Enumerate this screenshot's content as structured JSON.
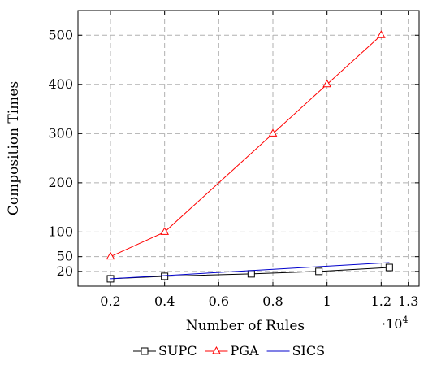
{
  "chart_data": {
    "type": "line",
    "xlabel": "Number of Rules",
    "ylabel": "Composition Times",
    "x_multiplier_label": "·10",
    "x_multiplier_exponent": "4",
    "xlim": [
      0.08,
      1.34
    ],
    "ylim": [
      -10,
      550
    ],
    "grid": true,
    "grid_style": "dashed",
    "legend_position": "bottom",
    "x_ticks": [
      {
        "value": 0.2,
        "label": "0.2"
      },
      {
        "value": 0.4,
        "label": "0.4"
      },
      {
        "value": 0.6,
        "label": "0.6"
      },
      {
        "value": 0.8,
        "label": "0.8"
      },
      {
        "value": 1.0,
        "label": "1"
      },
      {
        "value": 1.2,
        "label": "1.2"
      },
      {
        "value": 1.3,
        "label": "1.3"
      }
    ],
    "y_ticks": [
      {
        "value": 20,
        "label": "20"
      },
      {
        "value": 50,
        "label": "50"
      },
      {
        "value": 100,
        "label": "100"
      },
      {
        "value": 200,
        "label": "200"
      },
      {
        "value": 300,
        "label": "300"
      },
      {
        "value": 400,
        "label": "400"
      },
      {
        "value": 500,
        "label": "500"
      }
    ],
    "series": [
      {
        "name": "SUPC",
        "color": "#000000",
        "marker": "square",
        "x": [
          0.2,
          0.4,
          0.72,
          0.97,
          1.23
        ],
        "y": [
          5,
          10,
          15,
          20,
          28
        ]
      },
      {
        "name": "PGA",
        "color": "#ff0000",
        "marker": "triangle",
        "x": [
          0.2,
          0.4,
          0.8,
          1.0,
          1.2
        ],
        "y": [
          50,
          100,
          300,
          400,
          500
        ]
      },
      {
        "name": "SICS",
        "color": "#0000cc",
        "marker": "none",
        "x": [
          0.2,
          1.23
        ],
        "y": [
          5,
          38
        ]
      }
    ]
  }
}
